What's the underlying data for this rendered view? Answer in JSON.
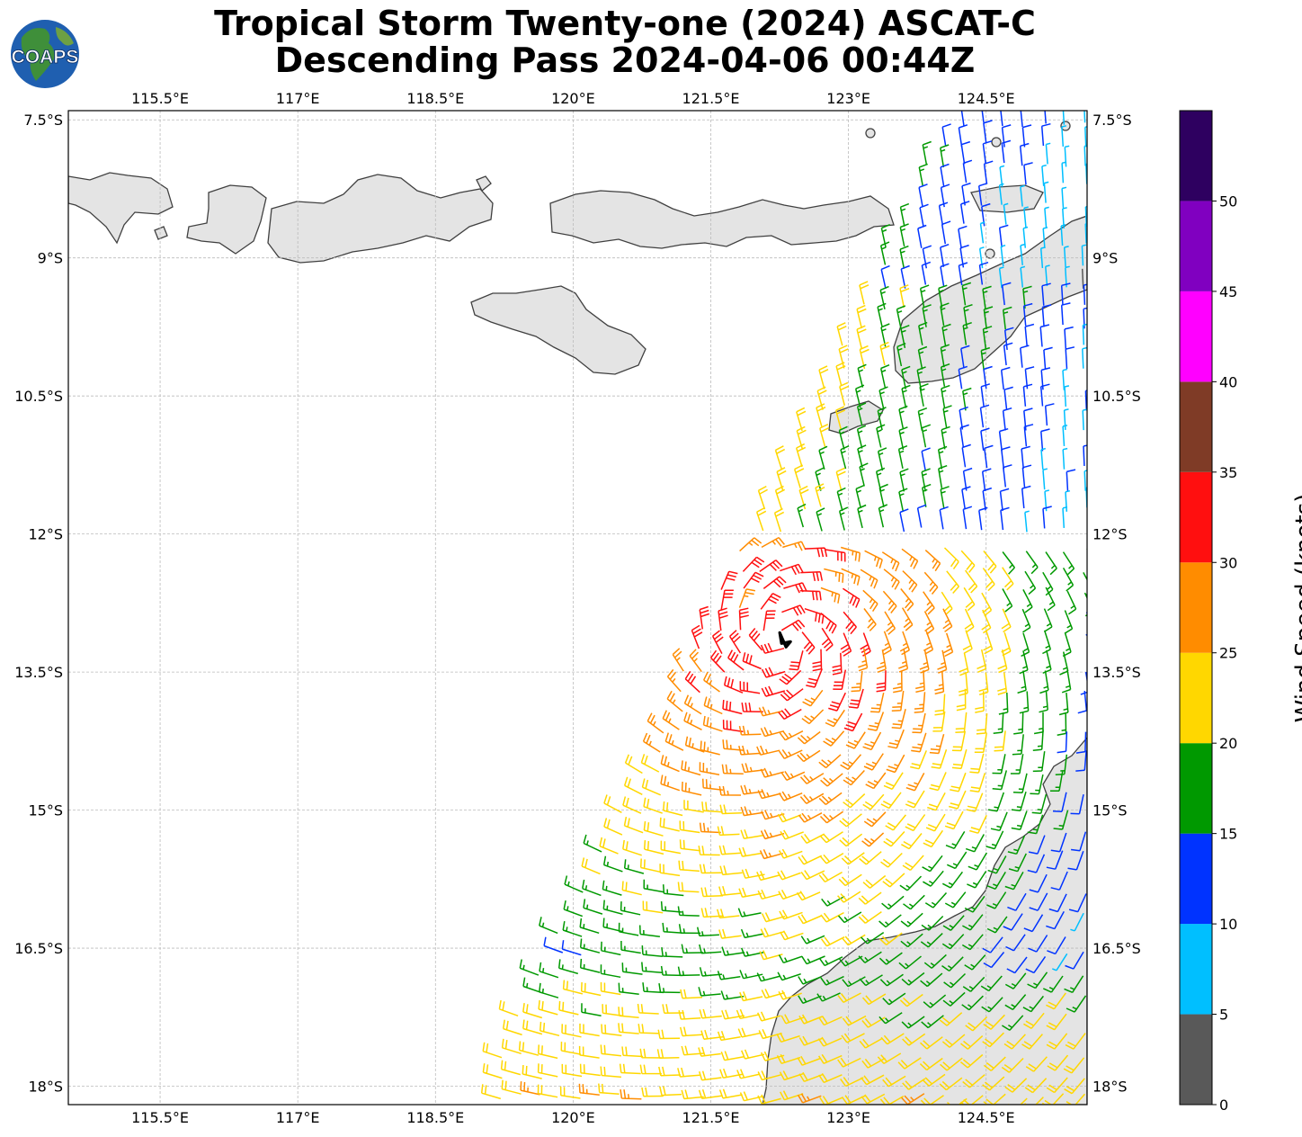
{
  "title": {
    "line1": "Tropical Storm Twenty-one (2024) ASCAT-C",
    "line2": "Descending Pass 2024-04-06 00:44Z"
  },
  "logo": {
    "text": "COAPS",
    "icon": "globe-logo-icon"
  },
  "map": {
    "lon_range": [
      114.5,
      125.6
    ],
    "lat_range": [
      -18.2,
      -7.4
    ],
    "lon_ticks": [
      "115.5°E",
      "117°E",
      "118.5°E",
      "120°E",
      "121.5°E",
      "123°E",
      "124.5°E"
    ],
    "lon_values": [
      115.5,
      117,
      118.5,
      120,
      121.5,
      123,
      124.5
    ],
    "lat_ticks": [
      "7.5°S",
      "9°S",
      "10.5°S",
      "12°S",
      "13.5°S",
      "15°S",
      "16.5°S",
      "18°S"
    ],
    "lat_values": [
      -7.5,
      -9,
      -10.5,
      -12,
      -13.5,
      -15,
      -16.5,
      -18
    ],
    "storm_center": {
      "lon": 122.3,
      "lat": -13.15,
      "marker": "storm-center-icon"
    }
  },
  "colorbar": {
    "label": "Wind Speed (knots)",
    "ticks": [
      "0",
      "5",
      "10",
      "15",
      "20",
      "25",
      "30",
      "35",
      "40",
      "45",
      "50"
    ],
    "bins": [
      {
        "min": 0,
        "max": 5,
        "color": "#595959"
      },
      {
        "min": 5,
        "max": 10,
        "color": "#00bfff"
      },
      {
        "min": 10,
        "max": 15,
        "color": "#0033ff"
      },
      {
        "min": 15,
        "max": 20,
        "color": "#009900"
      },
      {
        "min": 20,
        "max": 25,
        "color": "#ffd700"
      },
      {
        "min": 25,
        "max": 30,
        "color": "#ff8c00"
      },
      {
        "min": 30,
        "max": 35,
        "color": "#ff0f0f"
      },
      {
        "min": 35,
        "max": 40,
        "color": "#7f3b26"
      },
      {
        "min": 40,
        "max": 45,
        "color": "#ff00ff"
      },
      {
        "min": 45,
        "max": 50,
        "color": "#8000c0"
      },
      {
        "min": 50,
        "max": 55,
        "color": "#2e0060"
      }
    ]
  }
}
